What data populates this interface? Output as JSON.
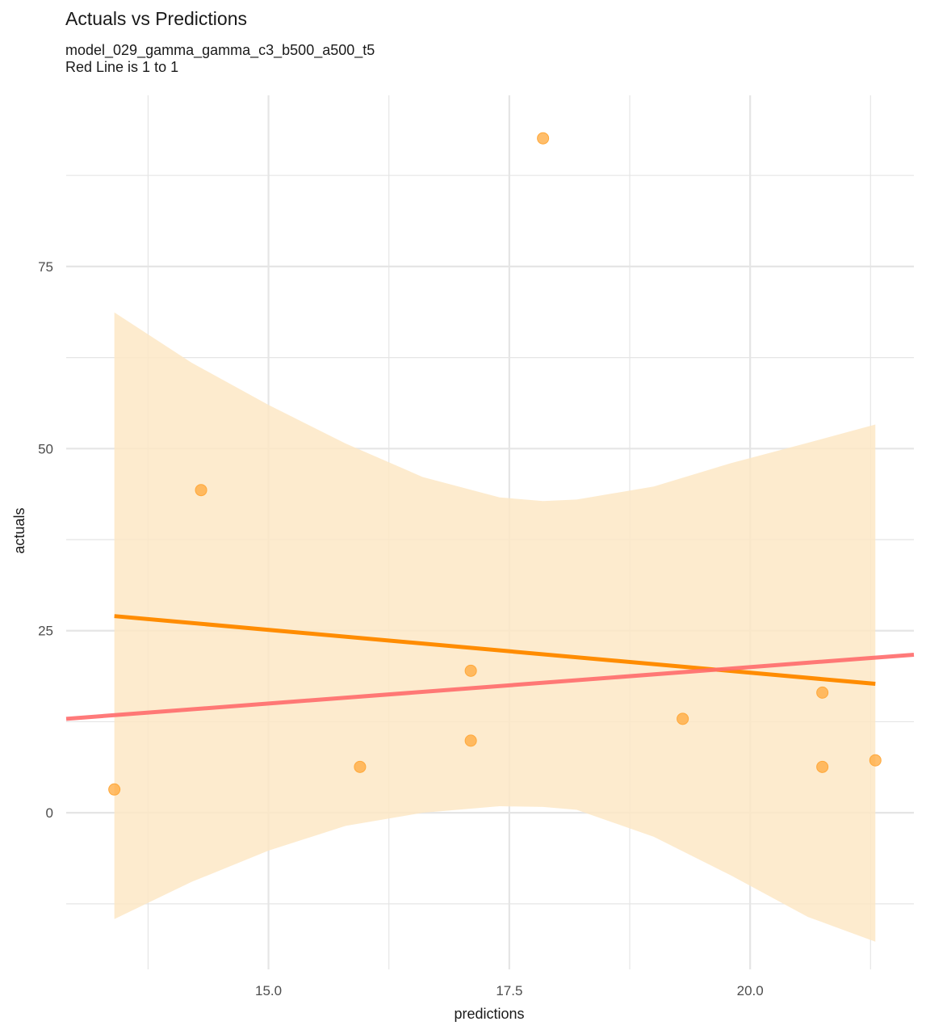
{
  "chart_data": {
    "type": "scatter",
    "title": "Actuals vs Predictions",
    "subtitle_lines": [
      "model_029_gamma_gamma_c3_b500_a500_t5",
      "Red Line is 1 to 1"
    ],
    "xlabel": "predictions",
    "ylabel": "actuals",
    "xlim": [
      12.9,
      21.7
    ],
    "ylim": [
      -21.5,
      98.5
    ],
    "x_ticks": [
      15.0,
      17.5,
      20.0
    ],
    "x_tick_labels": [
      "15.0",
      "17.5",
      "20.0"
    ],
    "x_minor_ticks": [
      13.75,
      16.25,
      18.75,
      21.25
    ],
    "y_ticks": [
      0,
      25,
      50,
      75
    ],
    "y_tick_labels": [
      "0",
      "25",
      "50",
      "75"
    ],
    "y_minor_ticks": [
      -12.5,
      12.5,
      37.5,
      62.5,
      87.5
    ],
    "grid": true,
    "points": [
      {
        "x": 13.4,
        "y": 3.2
      },
      {
        "x": 14.3,
        "y": 44.3
      },
      {
        "x": 15.95,
        "y": 6.3
      },
      {
        "x": 17.1,
        "y": 9.9
      },
      {
        "x": 17.1,
        "y": 19.5
      },
      {
        "x": 17.85,
        "y": 92.6
      },
      {
        "x": 19.3,
        "y": 12.9
      },
      {
        "x": 20.75,
        "y": 16.5
      },
      {
        "x": 20.75,
        "y": 6.3
      },
      {
        "x": 21.3,
        "y": 7.2
      }
    ],
    "regression_line": {
      "x": [
        13.4,
        21.3
      ],
      "y": [
        27.0,
        17.7
      ]
    },
    "confidence_band": {
      "x": [
        13.4,
        14.2,
        15.0,
        15.8,
        16.6,
        17.4,
        17.85,
        18.2,
        19.0,
        19.8,
        20.6,
        21.3
      ],
      "upper": [
        68.7,
        61.8,
        56.0,
        50.7,
        46.1,
        43.3,
        42.8,
        43.0,
        44.8,
        48.0,
        50.8,
        53.3
      ],
      "lower": [
        -14.6,
        -9.5,
        -5.2,
        -1.8,
        0.0,
        0.9,
        0.8,
        0.4,
        -3.3,
        -8.6,
        -14.3,
        -17.7
      ]
    },
    "identity_line": {
      "x": [
        12.9,
        21.7
      ],
      "y": [
        12.9,
        21.7
      ]
    },
    "colors": {
      "points": "#ffa83a",
      "regression": "#ff8c00",
      "band": "#fde7c6",
      "identity": "#ff6b6b",
      "grid": "#e5e5e5"
    }
  }
}
